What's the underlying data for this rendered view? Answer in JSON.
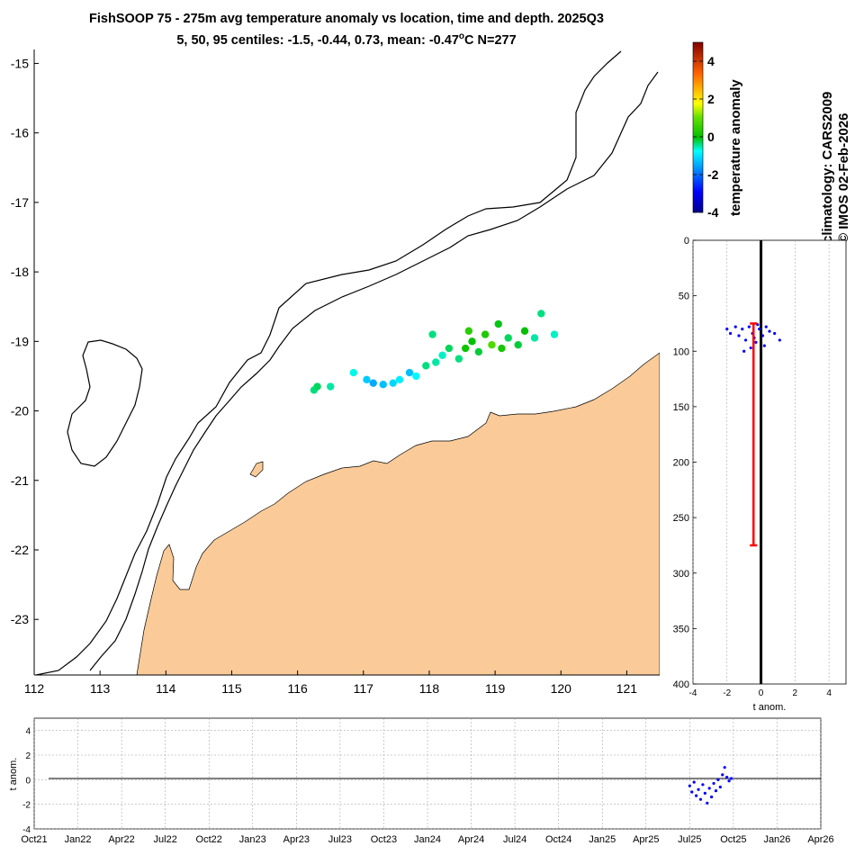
{
  "title_line1": "FishSOOP 75 - 275m avg temperature anomaly vs location, time and depth. 2025Q3",
  "title_line2_prefix": "5, 50, 95 centiles: -1.5, -0.44, 0.73, mean: -0.47",
  "title_line2_deg": "o",
  "title_line2_suffix": "C N=277",
  "credits": [
    "climatology: CARS2009",
    "© IMOS 02-Feb-2026"
  ],
  "colors": {
    "land": "#FACB99",
    "points_blue": "#0000FF",
    "centile_bar": "#FF0000",
    "zero_line": "#000000"
  },
  "chart_data": [
    {
      "type": "scatter",
      "name": "map",
      "xlim": [
        112,
        121.5
      ],
      "ylim": [
        -23.8,
        -14.8
      ],
      "x_ticks": [
        "112",
        "113",
        "114",
        "115",
        "116",
        "117",
        "118",
        "119",
        "120",
        "121"
      ],
      "y_ticks": [
        "-15",
        "-16",
        "-17",
        "-18",
        "-19",
        "-20",
        "-21",
        "-22",
        "-23"
      ],
      "colorbar": {
        "label": "temperature anomaly",
        "range": [
          -4,
          5
        ],
        "ticks": [
          "4",
          "2",
          "0",
          "-2",
          "-4"
        ]
      },
      "points": [
        {
          "lon": 116.25,
          "lat": -19.7,
          "anom": -0.4
        },
        {
          "lon": 116.3,
          "lat": -19.65,
          "anom": -0.3
        },
        {
          "lon": 116.5,
          "lat": -19.65,
          "anom": -0.5
        },
        {
          "lon": 116.85,
          "lat": -19.45,
          "anom": -0.7
        },
        {
          "lon": 117.05,
          "lat": -19.55,
          "anom": -1.2
        },
        {
          "lon": 117.15,
          "lat": -19.6,
          "anom": -1.5
        },
        {
          "lon": 117.3,
          "lat": -19.62,
          "anom": -1.3
        },
        {
          "lon": 117.45,
          "lat": -19.6,
          "anom": -1.1
        },
        {
          "lon": 117.55,
          "lat": -19.55,
          "anom": -0.9
        },
        {
          "lon": 117.7,
          "lat": -19.45,
          "anom": -1.3
        },
        {
          "lon": 117.8,
          "lat": -19.5,
          "anom": -0.8
        },
        {
          "lon": 117.95,
          "lat": -19.35,
          "anom": -0.4
        },
        {
          "lon": 118.1,
          "lat": -19.3,
          "anom": -0.5
        },
        {
          "lon": 118.2,
          "lat": -19.2,
          "anom": -0.6
        },
        {
          "lon": 118.3,
          "lat": -19.1,
          "anom": -0.3
        },
        {
          "lon": 118.45,
          "lat": -19.25,
          "anom": -0.4
        },
        {
          "lon": 118.55,
          "lat": -19.1,
          "anom": 0.1
        },
        {
          "lon": 118.65,
          "lat": -19.0,
          "anom": 0.0
        },
        {
          "lon": 118.75,
          "lat": -19.15,
          "anom": -0.2
        },
        {
          "lon": 118.85,
          "lat": -18.9,
          "anom": 0.3
        },
        {
          "lon": 118.95,
          "lat": -19.05,
          "anom": 0.8
        },
        {
          "lon": 119.1,
          "lat": -19.1,
          "anom": 0.2
        },
        {
          "lon": 119.2,
          "lat": -18.95,
          "anom": -0.3
        },
        {
          "lon": 119.35,
          "lat": -19.05,
          "anom": -0.2
        },
        {
          "lon": 119.45,
          "lat": -18.85,
          "anom": 0.0
        },
        {
          "lon": 119.6,
          "lat": -18.95,
          "anom": -0.5
        },
        {
          "lon": 119.7,
          "lat": -18.6,
          "anom": -0.4
        },
        {
          "lon": 119.9,
          "lat": -18.9,
          "anom": -0.6
        },
        {
          "lon": 118.05,
          "lat": -18.9,
          "anom": -0.4
        },
        {
          "lon": 118.6,
          "lat": -18.85,
          "anom": 0.4
        },
        {
          "lon": 119.05,
          "lat": -18.75,
          "anom": -0.1
        }
      ]
    },
    {
      "type": "scatter",
      "name": "depth_profile",
      "xlabel": "t anom.",
      "xlim": [
        -4,
        5
      ],
      "ylim": [
        0,
        400
      ],
      "x_ticks": [
        "-4",
        "-2",
        "0",
        "2",
        "4"
      ],
      "y_ticks": [
        "0",
        "50",
        "100",
        "150",
        "200",
        "250",
        "300",
        "350",
        "400"
      ],
      "points": [
        {
          "anom": -2.0,
          "depth": 80
        },
        {
          "anom": -1.8,
          "depth": 84
        },
        {
          "anom": -1.5,
          "depth": 78
        },
        {
          "anom": -1.3,
          "depth": 86
        },
        {
          "anom": -1.1,
          "depth": 80
        },
        {
          "anom": -0.9,
          "depth": 90
        },
        {
          "anom": -0.7,
          "depth": 78
        },
        {
          "anom": -0.5,
          "depth": 84
        },
        {
          "anom": -0.3,
          "depth": 92
        },
        {
          "anom": -0.1,
          "depth": 80
        },
        {
          "anom": 0.1,
          "depth": 86
        },
        {
          "anom": 0.3,
          "depth": 78
        },
        {
          "anom": 0.5,
          "depth": 82
        },
        {
          "anom": 0.8,
          "depth": 84
        },
        {
          "anom": 1.1,
          "depth": 90
        },
        {
          "anom": -1.0,
          "depth": 100
        },
        {
          "anom": -0.6,
          "depth": 97
        },
        {
          "anom": 0.2,
          "depth": 95
        },
        {
          "anom": -0.2,
          "depth": 76
        },
        {
          "anom": -0.4,
          "depth": 88
        }
      ],
      "centile_bar": {
        "anom": -0.44,
        "depth_top": 75,
        "depth_bottom": 275
      }
    },
    {
      "type": "scatter",
      "name": "time_series",
      "ylabel": "t anom.",
      "ylim": [
        -4,
        5
      ],
      "y_ticks": [
        "4",
        "2",
        "0",
        "-2",
        "-4"
      ],
      "x_ticks": [
        "Oct21",
        "Jan22",
        "Apr22",
        "Jul22",
        "Oct22",
        "Jan23",
        "Apr23",
        "Jul23",
        "Oct23",
        "Jan24",
        "Apr24",
        "Jul24",
        "Oct24",
        "Jan25",
        "Apr25",
        "Jul25",
        "Oct25",
        "Jan26",
        "Apr26"
      ],
      "points": [
        {
          "t": 15.0,
          "anom": -0.5
        },
        {
          "t": 15.05,
          "anom": -1.0
        },
        {
          "t": 15.1,
          "anom": -0.2
        },
        {
          "t": 15.15,
          "anom": -1.3
        },
        {
          "t": 15.2,
          "anom": -0.8
        },
        {
          "t": 15.25,
          "anom": -1.6
        },
        {
          "t": 15.3,
          "anom": -0.4
        },
        {
          "t": 15.35,
          "anom": -1.1
        },
        {
          "t": 15.4,
          "anom": -1.9
        },
        {
          "t": 15.45,
          "anom": -0.7
        },
        {
          "t": 15.5,
          "anom": -1.4
        },
        {
          "t": 15.55,
          "anom": -0.3
        },
        {
          "t": 15.6,
          "anom": -0.9
        },
        {
          "t": 15.65,
          "anom": 0.0
        },
        {
          "t": 15.7,
          "anom": -0.6
        },
        {
          "t": 15.75,
          "anom": 0.4
        },
        {
          "t": 15.8,
          "anom": 1.0
        },
        {
          "t": 15.85,
          "anom": 0.2
        },
        {
          "t": 15.9,
          "anom": -0.1
        },
        {
          "t": 15.95,
          "anom": 0.1
        }
      ]
    }
  ]
}
